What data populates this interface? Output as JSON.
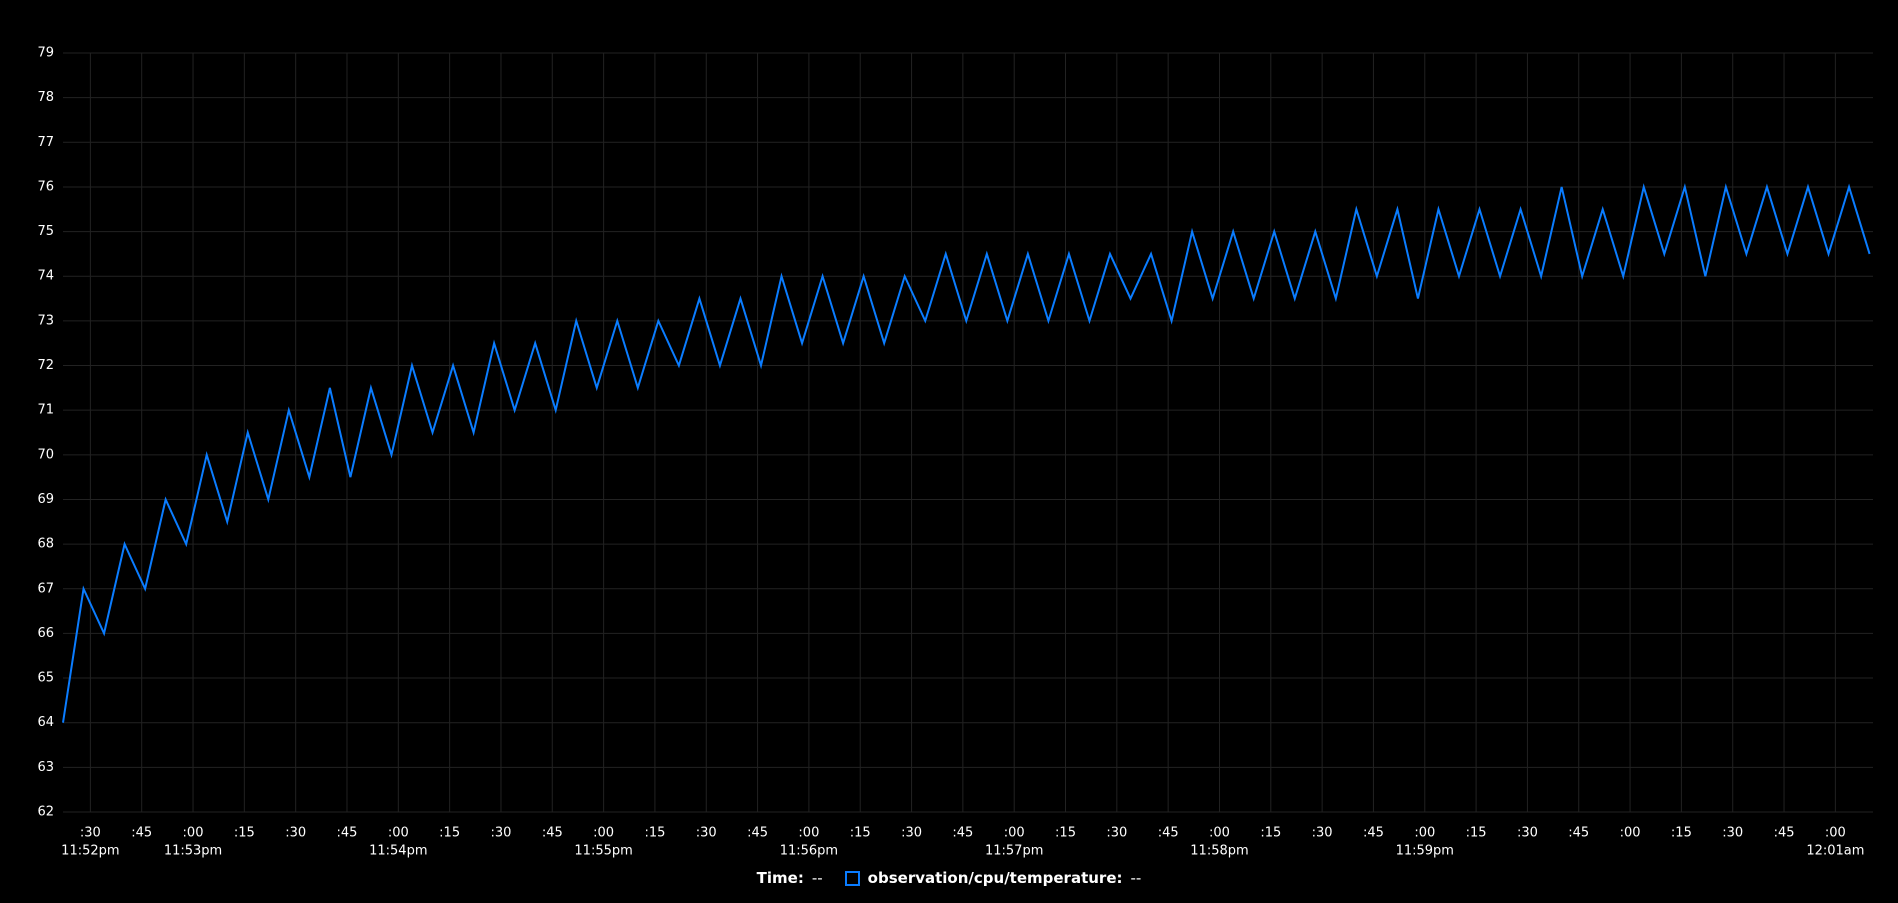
{
  "chart_data": {
    "type": "line",
    "x": [
      "23:52:22",
      "23:52:28",
      "23:52:34",
      "23:52:40",
      "23:52:46",
      "23:52:52",
      "23:52:58",
      "23:53:04",
      "23:53:10",
      "23:53:16",
      "23:53:22",
      "23:53:28",
      "23:53:34",
      "23:53:40",
      "23:53:46",
      "23:53:52",
      "23:53:58",
      "23:54:04",
      "23:54:10",
      "23:54:16",
      "23:54:22",
      "23:54:28",
      "23:54:34",
      "23:54:40",
      "23:54:46",
      "23:54:52",
      "23:54:58",
      "23:55:04",
      "23:55:10",
      "23:55:16",
      "23:55:22",
      "23:55:28",
      "23:55:34",
      "23:55:40",
      "23:55:46",
      "23:55:52",
      "23:55:58",
      "23:56:04",
      "23:56:10",
      "23:56:16",
      "23:56:22",
      "23:56:28",
      "23:56:34",
      "23:56:40",
      "23:56:46",
      "23:56:52",
      "23:56:58",
      "23:57:04",
      "23:57:10",
      "23:57:16",
      "23:57:22",
      "23:57:28",
      "23:57:34",
      "23:57:40",
      "23:57:46",
      "23:57:52",
      "23:57:58",
      "23:58:04",
      "23:58:10",
      "23:58:16",
      "23:58:22",
      "23:58:28",
      "23:58:34",
      "23:58:40",
      "23:58:46",
      "23:58:52",
      "23:58:58",
      "23:59:04",
      "23:59:10",
      "23:59:16",
      "23:59:22",
      "23:59:28",
      "23:59:34",
      "23:59:40",
      "23:59:46",
      "23:59:52",
      "23:59:58",
      "00:00:04",
      "00:00:10",
      "00:00:16",
      "00:00:22",
      "00:00:28",
      "00:00:34",
      "00:00:40",
      "00:00:46",
      "00:00:52",
      "00:00:58",
      "00:01:04",
      "00:01:10"
    ],
    "series": [
      {
        "name": "observation/cpu/temperature:",
        "color": "#0a7cff",
        "values": [
          64,
          67,
          66,
          68,
          67,
          69,
          68,
          70,
          68.5,
          70.5,
          69,
          71,
          69.5,
          71.5,
          69.5,
          71.5,
          70,
          72,
          70.5,
          72,
          70.5,
          72.5,
          71,
          72.5,
          71,
          73,
          71.5,
          73,
          71.5,
          73,
          72,
          73.5,
          72,
          73.5,
          72,
          74,
          72.5,
          74,
          72.5,
          74,
          72.5,
          74,
          73,
          74.5,
          73,
          74.5,
          73,
          74.5,
          73,
          74.5,
          73,
          74.5,
          73.5,
          74.5,
          73,
          75,
          73.5,
          75,
          73.5,
          75,
          73.5,
          75,
          73.5,
          75.5,
          74,
          75.5,
          73.5,
          75.5,
          74,
          75.5,
          74,
          75.5,
          74,
          76,
          74,
          75.5,
          74,
          76,
          74.5,
          76,
          74,
          76,
          74.5,
          76,
          74.5,
          76,
          74.5,
          76,
          74.5
        ]
      }
    ],
    "xlim": [
      "23:52:22",
      "00:01:11"
    ],
    "xticks": [
      {
        "value": "23:52:30",
        "label": ":30"
      },
      {
        "value": "23:52:45",
        "label": ":45"
      },
      {
        "value": "23:53:00",
        "label": ":00"
      },
      {
        "value": "23:53:15",
        "label": ":15"
      },
      {
        "value": "23:53:30",
        "label": ":30"
      },
      {
        "value": "23:53:45",
        "label": ":45"
      },
      {
        "value": "23:54:00",
        "label": ":00"
      },
      {
        "value": "23:54:15",
        "label": ":15"
      },
      {
        "value": "23:54:30",
        "label": ":30"
      },
      {
        "value": "23:54:45",
        "label": ":45"
      },
      {
        "value": "23:55:00",
        "label": ":00"
      },
      {
        "value": "23:55:15",
        "label": ":15"
      },
      {
        "value": "23:55:30",
        "label": ":30"
      },
      {
        "value": "23:55:45",
        "label": ":45"
      },
      {
        "value": "23:56:00",
        "label": ":00"
      },
      {
        "value": "23:56:15",
        "label": ":15"
      },
      {
        "value": "23:56:30",
        "label": ":30"
      },
      {
        "value": "23:56:45",
        "label": ":45"
      },
      {
        "value": "23:57:00",
        "label": ":00"
      },
      {
        "value": "23:57:15",
        "label": ":15"
      },
      {
        "value": "23:57:30",
        "label": ":30"
      },
      {
        "value": "23:57:45",
        "label": ":45"
      },
      {
        "value": "23:58:00",
        "label": ":00"
      },
      {
        "value": "23:58:15",
        "label": ":15"
      },
      {
        "value": "23:58:30",
        "label": ":30"
      },
      {
        "value": "23:58:45",
        "label": ":45"
      },
      {
        "value": "23:59:00",
        "label": ":00"
      },
      {
        "value": "23:59:15",
        "label": ":15"
      },
      {
        "value": "23:59:30",
        "label": ":30"
      },
      {
        "value": "23:59:45",
        "label": ":45"
      },
      {
        "value": "00:00:00",
        "label": ":00"
      },
      {
        "value": "00:00:15",
        "label": ":15"
      },
      {
        "value": "00:00:30",
        "label": ":30"
      },
      {
        "value": "00:00:45",
        "label": ":45"
      },
      {
        "value": "00:01:00",
        "label": ":00"
      }
    ],
    "xticks_major": [
      {
        "value": "23:52:30",
        "label": "11:52pm"
      },
      {
        "value": "23:53:00",
        "label": "11:53pm"
      },
      {
        "value": "23:54:00",
        "label": "11:54pm"
      },
      {
        "value": "23:55:00",
        "label": "11:55pm"
      },
      {
        "value": "23:56:00",
        "label": "11:56pm"
      },
      {
        "value": "23:57:00",
        "label": "11:57pm"
      },
      {
        "value": "23:58:00",
        "label": "11:58pm"
      },
      {
        "value": "23:59:00",
        "label": "11:59pm"
      },
      {
        "value": "00:01:00",
        "label": "12:01am"
      }
    ],
    "ylim": [
      62,
      79
    ],
    "yticks": [
      62,
      63,
      64,
      65,
      66,
      67,
      68,
      69,
      70,
      71,
      72,
      73,
      74,
      75,
      76,
      77,
      78,
      79
    ],
    "grid": true,
    "legend": {
      "time_label": "Time:",
      "time_value": "--",
      "series_value": "--"
    }
  }
}
